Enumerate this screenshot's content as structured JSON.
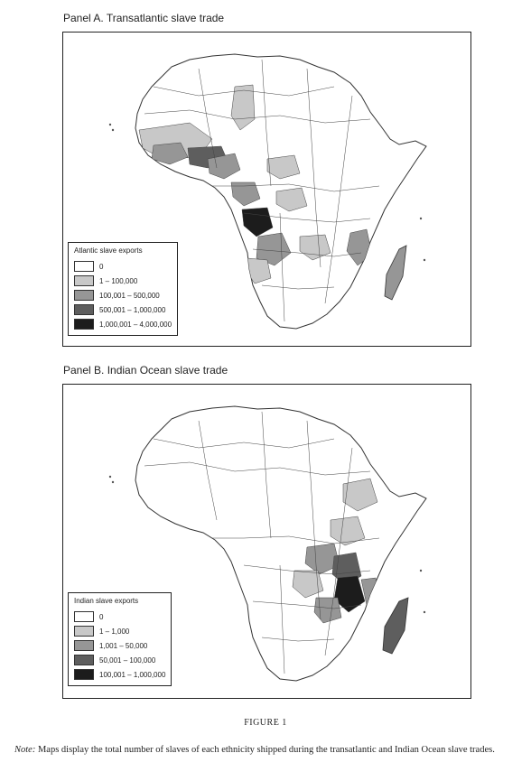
{
  "panel_a": {
    "title": "Panel A. Transatlantic slave trade",
    "legend": {
      "title": "Atlantic slave exports",
      "items": [
        {
          "label": "0",
          "color": "#ffffff"
        },
        {
          "label": "1 – 100,000",
          "color": "#c8c8c8"
        },
        {
          "label": "100,001 – 500,000",
          "color": "#969696"
        },
        {
          "label": "500,001 – 1,000,000",
          "color": "#5e5e5e"
        },
        {
          "label": "1,000,001 – 4,000,000",
          "color": "#1c1c1c"
        }
      ]
    }
  },
  "panel_b": {
    "title": "Panel B. Indian Ocean slave trade",
    "legend": {
      "title": "Indian slave exports",
      "items": [
        {
          "label": "0",
          "color": "#ffffff"
        },
        {
          "label": "1 – 1,000",
          "color": "#c8c8c8"
        },
        {
          "label": "1,001 – 50,000",
          "color": "#969696"
        },
        {
          "label": "50,001 – 100,000",
          "color": "#5e5e5e"
        },
        {
          "label": "100,001 – 1,000,000",
          "color": "#1c1c1c"
        }
      ]
    }
  },
  "figure_label": "FIGURE 1",
  "note": {
    "lead": "Note:",
    "text": " Maps display the total number of slaves of each ethnicity shipped during the transatlantic and Indian Ocean slave trades."
  }
}
